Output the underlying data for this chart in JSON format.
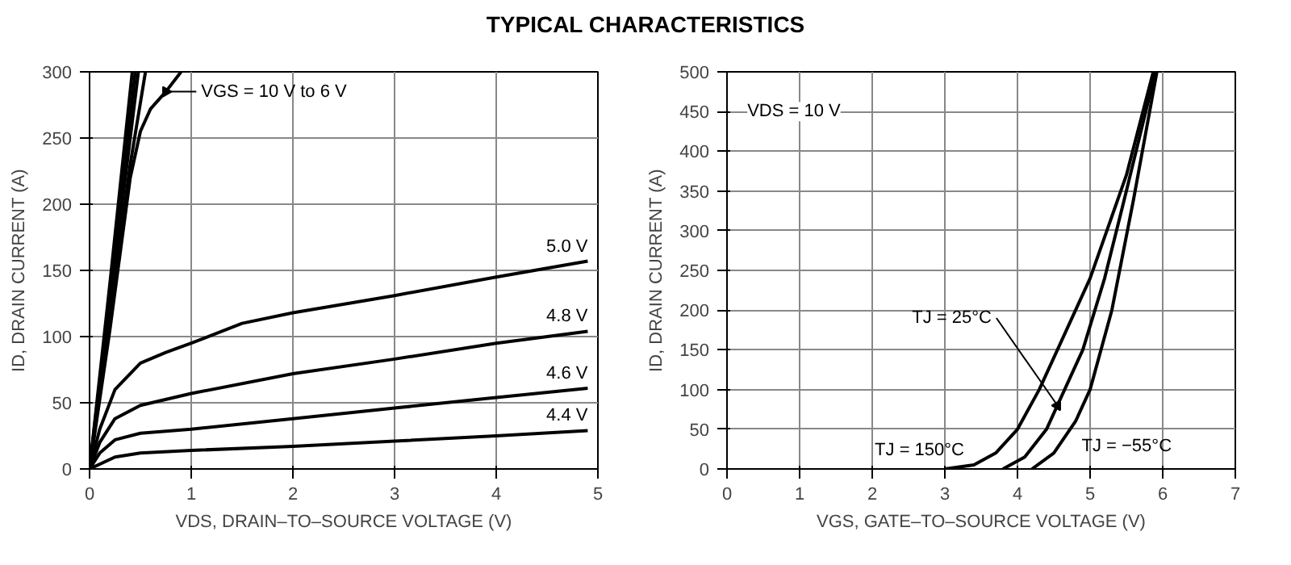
{
  "chart_data": [
    {
      "type": "line",
      "title": "TYPICAL CHARACTERISTICS",
      "xlabel": "VDS, DRAIN–TO–SOURCE VOLTAGE (V)",
      "ylabel": "ID, DRAIN CURRENT (A)",
      "xlim": [
        0,
        5
      ],
      "ylim": [
        0,
        300
      ],
      "xticks": [
        0,
        1,
        2,
        3,
        4,
        5
      ],
      "yticks": [
        0,
        50,
        100,
        150,
        200,
        250,
        300
      ],
      "grid": true,
      "series": [
        {
          "color": "#000000",
          "x": [
            0,
            0.2,
            0.42
          ],
          "values": [
            0,
            140,
            300
          ]
        },
        {
          "color": "#000000",
          "x": [
            0,
            0.2,
            0.45
          ],
          "values": [
            0,
            130,
            300
          ]
        },
        {
          "color": "#000000",
          "x": [
            0,
            0.2,
            0.48
          ],
          "values": [
            0,
            125,
            300
          ]
        },
        {
          "color": "#000000",
          "x": [
            0,
            0.2,
            0.4,
            0.55
          ],
          "values": [
            0,
            115,
            230,
            300
          ]
        },
        {
          "color": "#000000",
          "x": [
            0,
            0.2,
            0.4,
            0.5,
            0.6,
            0.75,
            0.9
          ],
          "values": [
            0,
            105,
            220,
            255,
            272,
            285,
            300
          ]
        },
        {
          "name": "5.0 V",
          "color": "#000000",
          "x": [
            0,
            0.1,
            0.25,
            0.5,
            0.75,
            1,
            1.5,
            2,
            3,
            4,
            4.9
          ],
          "values": [
            0,
            30,
            60,
            80,
            88,
            95,
            110,
            118,
            131,
            145,
            157
          ]
        },
        {
          "name": "4.8 V",
          "color": "#000000",
          "x": [
            0,
            0.1,
            0.25,
            0.5,
            1,
            2,
            3,
            4,
            4.9
          ],
          "values": [
            0,
            20,
            38,
            48,
            57,
            72,
            83,
            95,
            104
          ]
        },
        {
          "name": "4.6 V",
          "color": "#000000",
          "x": [
            0,
            0.1,
            0.25,
            0.5,
            1,
            2,
            3,
            4,
            4.9
          ],
          "values": [
            0,
            12,
            22,
            27,
            30,
            38,
            46,
            54,
            61
          ]
        },
        {
          "name": "4.4 V",
          "color": "#000000",
          "x": [
            0,
            0.25,
            0.5,
            1,
            2,
            3,
            4,
            4.9
          ],
          "values": [
            0,
            9,
            12,
            14,
            17,
            21,
            25,
            29
          ]
        }
      ],
      "annotations": [
        {
          "text": "VGS = 10 V to 6 V",
          "x": 0.75,
          "y": 285
        }
      ]
    },
    {
      "type": "line",
      "xlabel": "VGS, GATE–TO–SOURCE VOLTAGE (V)",
      "ylabel": "ID, DRAIN CURRENT (A)",
      "xlim": [
        0,
        7
      ],
      "ylim": [
        0,
        500
      ],
      "xticks": [
        0,
        1,
        2,
        3,
        4,
        5,
        6,
        7
      ],
      "yticks": [
        0,
        50,
        100,
        150,
        200,
        250,
        300,
        350,
        400,
        450,
        500
      ],
      "grid": true,
      "series": [
        {
          "color": "#000000",
          "x": [
            3,
            3.4,
            3.7,
            4,
            4.3,
            4.6,
            5,
            5.5,
            5.87
          ],
          "values": [
            0,
            5,
            20,
            50,
            100,
            160,
            240,
            370,
            500
          ]
        },
        {
          "color": "#000000",
          "x": [
            3.8,
            4.1,
            4.4,
            4.6,
            4.9,
            5.2,
            5.5,
            5.9
          ],
          "values": [
            0,
            15,
            50,
            90,
            150,
            240,
            350,
            500
          ]
        },
        {
          "color": "#000000",
          "x": [
            4.2,
            4.5,
            4.8,
            5,
            5.3,
            5.6,
            5.92
          ],
          "values": [
            0,
            20,
            60,
            100,
            200,
            340,
            500
          ]
        }
      ],
      "annotations": [
        "VDS = 10 V",
        {
          "text": "TJ = 150°C",
          "x": 3.4,
          "y": 5
        },
        {
          "text": "TJ = 25°C",
          "x": 4.55,
          "y": 80
        },
        {
          "text": "TJ = −55°C",
          "x": 4.35,
          "y": 10
        }
      ]
    }
  ]
}
